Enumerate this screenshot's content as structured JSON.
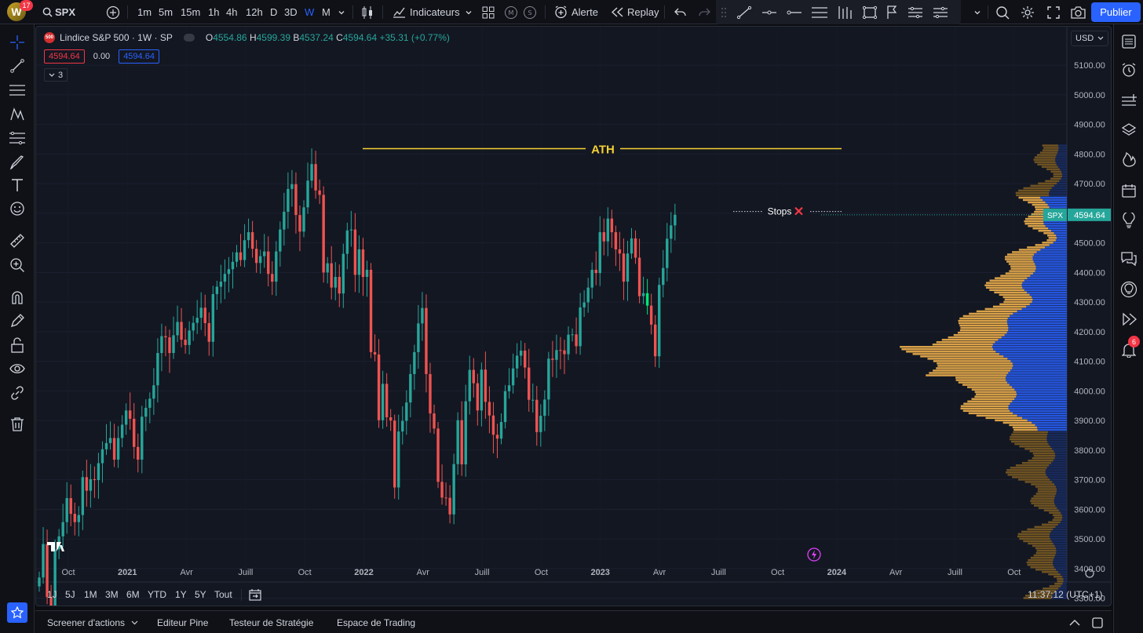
{
  "topbar": {
    "avatar_letter": "W",
    "notifications": "17",
    "symbol": "SPX",
    "intervals": [
      "1m",
      "5m",
      "15m",
      "1h",
      "4h",
      "12h",
      "D",
      "3D",
      "W",
      "M"
    ],
    "active_interval": "W",
    "indicators_label": "Indicateurs",
    "alert_label": "Alerte",
    "replay_label": "Replay",
    "publish_label": "Publier"
  },
  "legend": {
    "logo_text": "500",
    "title": "Lindice S&P 500 · 1W · SP",
    "o_label": "O",
    "o_value": "4554.86",
    "h_label": "H",
    "h_value": "4599.39",
    "b_label": "B",
    "b_value": "4537.24",
    "c_label": "C",
    "c_value": "4594.64",
    "change": "+35.31 (+0.77%)",
    "sell_price": "4594.64",
    "spread": "0.00",
    "buy_price": "4594.64",
    "collapsed_count": "3"
  },
  "currency": "USD",
  "chart_data": {
    "type": "candlestick",
    "symbol": "SPX",
    "interval": "1W",
    "ylim": [
      3270,
      5230
    ],
    "y_ticks": [
      "5100.00",
      "5000.00",
      "4900.00",
      "4800.00",
      "4700.00",
      "4600.00",
      "4500.00",
      "4400.00",
      "4300.00",
      "4200.00",
      "4100.00",
      "4000.00",
      "3900.00",
      "3800.00",
      "3700.00",
      "3600.00",
      "3500.00",
      "3400.00",
      "3300.00"
    ],
    "x_ticks": [
      "Oct",
      "2021",
      "Avr",
      "Juill",
      "Oct",
      "2022",
      "Avr",
      "Juill",
      "Oct",
      "2023",
      "Avr",
      "Juill",
      "Oct",
      "2024",
      "Avr",
      "Juill",
      "Oct"
    ],
    "last_price": "4594.64",
    "last_price_label": "SPX",
    "annotations": {
      "ath_label": "ATH",
      "ath_level": 4818,
      "stops_label": "Stops",
      "stops_level": 4606
    },
    "closes_weekly_approx": [
      3370,
      3483,
      3304,
      3270,
      3465,
      3509,
      3557,
      3638,
      3585,
      3557,
      3581,
      3709,
      3663,
      3702,
      3699,
      3756,
      3803,
      3824,
      3841,
      3768,
      3841,
      3886,
      3934,
      3906,
      3811,
      3768,
      3913,
      3943,
      3974,
      4019,
      4128,
      4185,
      4181,
      4128,
      4188,
      4233,
      4173,
      4155,
      4204,
      4230,
      4247,
      4281,
      4229,
      4166,
      4327,
      4352,
      4369,
      4395,
      4411,
      4436,
      4468,
      4442,
      4509,
      4536,
      4480,
      4432,
      4455,
      4471,
      4395,
      4369,
      4471,
      4545,
      4605,
      4682,
      4698,
      4594,
      4538,
      4620,
      4710,
      4766,
      4677,
      4662,
      4400,
      4431,
      4349,
      4385,
      4329,
      4463,
      4542,
      4545,
      4392,
      4478,
      4385,
      4409,
      4131,
      4123,
      3901,
      4024,
      3911,
      3900,
      3674,
      3863,
      3899,
      3961,
      4057,
      4131,
      4228,
      4280,
      4057,
      3924,
      3873,
      3693,
      3640,
      3639,
      3583,
      3753,
      3901,
      3752,
      3965,
      4071,
      4026,
      3934,
      4072,
      3963,
      3917,
      3852,
      3839,
      3895,
      3999,
      4019,
      4076,
      4119,
      4136,
      4079,
      3970,
      3970,
      3861,
      3916,
      3971,
      4109,
      4105,
      4138,
      4137,
      4124,
      4190,
      4191,
      4151,
      4282,
      4299,
      4349,
      4409,
      4398,
      4536,
      4505,
      4582,
      4536,
      4478,
      4464,
      4369,
      4464,
      4515,
      4450,
      4320,
      4330,
      4288,
      4224,
      4117,
      4358,
      4415,
      4514,
      4559,
      4595
    ],
    "volume_profile_levels": [
      3300,
      3800
    ],
    "volume_profile_poc": 4120,
    "time_display": "11:37:12 (UTC+1)"
  },
  "ranges": [
    "1J",
    "5J",
    "1M",
    "3M",
    "6M",
    "YTD",
    "1Y",
    "5Y",
    "Tout"
  ],
  "bottom_tabs": [
    "Screener d'actions",
    "Editeur Pine",
    "Testeur de Stratégie",
    "Espace de Trading"
  ],
  "colors": {
    "up": "#26a69a",
    "down": "#ef5350",
    "accent": "#2962ff",
    "ath": "#f5d033",
    "vp_blue": "#2962ff",
    "vp_orange": "#f0b04c"
  }
}
